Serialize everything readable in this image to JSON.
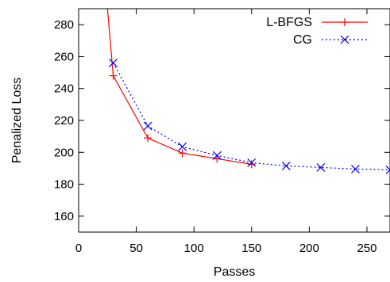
{
  "chart_data": {
    "type": "line",
    "xlabel": "Passes",
    "ylabel": "Penalized Loss",
    "xlim": [
      0,
      270
    ],
    "ylim": [
      150,
      290
    ],
    "xticks": [
      0,
      50,
      100,
      150,
      200,
      250
    ],
    "yticks": [
      160,
      180,
      200,
      220,
      240,
      260,
      280
    ],
    "grid": false,
    "legend_position": "top-right",
    "series": [
      {
        "name": "L-BFGS",
        "color": "#ff0000",
        "line_style": "solid",
        "marker": "plus",
        "x": [
          25,
          30,
          60,
          90,
          120,
          150
        ],
        "y": [
          290,
          248,
          209,
          199.5,
          196,
          192.5
        ],
        "marker_x": [
          30,
          60,
          90,
          120,
          150
        ]
      },
      {
        "name": "CG",
        "color": "#0000ff",
        "line_style": "dotted",
        "marker": "cross",
        "x": [
          30,
          60,
          90,
          120,
          150,
          180,
          210,
          240,
          270
        ],
        "y": [
          256,
          216.5,
          203.5,
          198,
          193.5,
          191.5,
          190.5,
          189.5,
          189
        ],
        "marker_x": [
          30,
          60,
          90,
          120,
          150,
          180,
          210,
          240,
          270
        ]
      }
    ]
  }
}
